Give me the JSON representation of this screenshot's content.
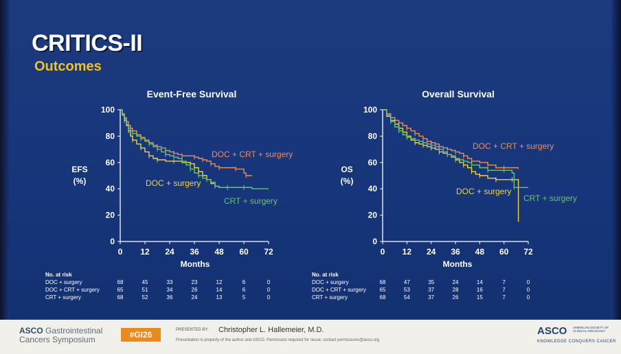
{
  "slide": {
    "title": "CRITICS-II",
    "subtitle": "Outcomes"
  },
  "colors": {
    "doc_crt": "#f28c55",
    "doc": "#f3d33a",
    "crt": "#6cc46a",
    "title": "#ffffff",
    "subtitle": "#f2c418",
    "background": "#16357a"
  },
  "chart_data": [
    {
      "type": "line",
      "title": "Event-Free Survival",
      "ylabel_line1": "EFS",
      "ylabel_line2": "(%)",
      "xlabel": "Months",
      "xticks": [
        0,
        12,
        24,
        36,
        48,
        60,
        72
      ],
      "yticks": [
        0,
        20,
        40,
        60,
        80,
        100
      ],
      "xlim": [
        0,
        72
      ],
      "ylim": [
        0,
        100
      ],
      "series": [
        {
          "name": "DOC + CRT + surgery",
          "color": "#f28c55",
          "x": [
            0,
            1,
            2,
            3,
            4,
            5,
            6,
            8,
            10,
            12,
            14,
            16,
            18,
            20,
            22,
            24,
            26,
            28,
            30,
            33,
            36,
            38,
            40,
            42,
            44,
            46,
            48,
            52,
            56,
            60,
            61,
            64
          ],
          "y": [
            100,
            97,
            94,
            91,
            88,
            86,
            84,
            81,
            79,
            77,
            75,
            73,
            72,
            71,
            69,
            68,
            67,
            66,
            65,
            65,
            64,
            63,
            62,
            61,
            59,
            57,
            56,
            56,
            55,
            52,
            50,
            50
          ]
        },
        {
          "name": "DOC + surgery",
          "color": "#f3d33a",
          "x": [
            0,
            1,
            2,
            3,
            4,
            5,
            6,
            8,
            10,
            12,
            14,
            16,
            18,
            22,
            26,
            30,
            34,
            36,
            38,
            40,
            42,
            44,
            46,
            48,
            52,
            56,
            60,
            64
          ],
          "y": [
            100,
            96,
            92,
            88,
            84,
            80,
            77,
            74,
            71,
            68,
            65,
            63,
            62,
            61,
            61,
            60,
            59,
            56,
            53,
            50,
            47,
            44,
            42,
            41,
            41,
            41,
            41,
            41
          ]
        },
        {
          "name": "CRT + surgery",
          "color": "#6cc46a",
          "x": [
            0,
            1,
            2,
            3,
            4,
            5,
            6,
            8,
            10,
            12,
            14,
            16,
            18,
            20,
            22,
            24,
            26,
            28,
            30,
            32,
            34,
            36,
            38,
            40,
            42,
            44,
            46,
            48,
            52,
            56,
            60,
            64,
            72
          ],
          "y": [
            100,
            97,
            93,
            89,
            86,
            84,
            82,
            80,
            78,
            76,
            74,
            72,
            70,
            68,
            66,
            65,
            64,
            63,
            61,
            58,
            55,
            52,
            50,
            48,
            47,
            45,
            42,
            41,
            41,
            41,
            41,
            40,
            40
          ]
        }
      ],
      "series_labels": [
        "DOC + CRT + surgery",
        "DOC + surgery",
        "CRT + surgery"
      ],
      "at_risk": {
        "header": "No. at risk",
        "months": [
          0,
          12,
          24,
          36,
          48,
          60,
          72
        ],
        "rows": [
          {
            "name": "DOC + surgery",
            "values": [
              "68",
              "45",
              "33",
              "23",
              "12",
              "6",
              "0"
            ]
          },
          {
            "name": "DOC + CRT + surgery",
            "values": [
              "65",
              "51",
              "34",
              "26",
              "14",
              "6",
              "0"
            ]
          },
          {
            "name": "CRT + surgery",
            "values": [
              "68",
              "52",
              "36",
              "24",
              "13",
              "5",
              "0"
            ]
          }
        ]
      }
    },
    {
      "type": "line",
      "title": "Overall Survival",
      "ylabel_line1": "OS",
      "ylabel_line2": "(%)",
      "xlabel": "Months",
      "xticks": [
        0,
        12,
        24,
        36,
        48,
        60,
        72
      ],
      "yticks": [
        0,
        20,
        40,
        60,
        80,
        100
      ],
      "xlim": [
        0,
        72
      ],
      "ylim": [
        0,
        100
      ],
      "series": [
        {
          "name": "DOC + CRT + surgery",
          "color": "#f28c55",
          "x": [
            0,
            2,
            4,
            6,
            8,
            10,
            12,
            14,
            16,
            18,
            20,
            22,
            24,
            26,
            28,
            30,
            32,
            34,
            36,
            38,
            40,
            42,
            44,
            48,
            52,
            56,
            60,
            64,
            67
          ],
          "y": [
            100,
            97,
            94,
            92,
            90,
            88,
            86,
            84,
            82,
            80,
            78,
            76,
            75,
            74,
            72,
            71,
            70,
            69,
            68,
            67,
            65,
            63,
            61,
            60,
            58,
            56,
            56,
            56,
            55
          ]
        },
        {
          "name": "DOC + surgery",
          "color": "#f3d33a",
          "x": [
            0,
            2,
            4,
            6,
            8,
            10,
            12,
            14,
            16,
            18,
            20,
            22,
            24,
            26,
            28,
            30,
            32,
            34,
            36,
            38,
            40,
            42,
            44,
            46,
            48,
            52,
            56,
            60,
            64,
            67,
            67.1
          ],
          "y": [
            100,
            95,
            92,
            89,
            86,
            83,
            80,
            77,
            75,
            74,
            73,
            72,
            71,
            70,
            68,
            67,
            66,
            64,
            62,
            60,
            58,
            56,
            53,
            51,
            50,
            48,
            47,
            47,
            47,
            47,
            15
          ]
        },
        {
          "name": "CRT + surgery",
          "color": "#6cc46a",
          "x": [
            0,
            2,
            4,
            6,
            8,
            10,
            12,
            14,
            16,
            18,
            20,
            22,
            24,
            26,
            28,
            30,
            32,
            34,
            36,
            38,
            40,
            42,
            44,
            48,
            52,
            56,
            60,
            64,
            65,
            72
          ],
          "y": [
            100,
            96,
            91,
            87,
            84,
            81,
            79,
            78,
            77,
            76,
            75,
            74,
            73,
            72,
            70,
            68,
            66,
            65,
            63,
            62,
            61,
            60,
            58,
            56,
            54,
            54,
            54,
            52,
            41,
            41
          ]
        }
      ],
      "series_labels": [
        "DOC + CRT + surgery",
        "DOC + surgery",
        "CRT + surgery"
      ],
      "at_risk": {
        "header": "No. at risk",
        "months": [
          0,
          12,
          24,
          36,
          48,
          60,
          72
        ],
        "rows": [
          {
            "name": "DOC + surgery",
            "values": [
              "68",
              "47",
              "35",
              "24",
              "14",
              "7",
              "0"
            ]
          },
          {
            "name": "DOC + CRT + surgery",
            "values": [
              "65",
              "53",
              "37",
              "28",
              "16",
              "7",
              "0"
            ]
          },
          {
            "name": "CRT + surgery",
            "values": [
              "68",
              "54",
              "37",
              "26",
              "15",
              "7",
              "0"
            ]
          }
        ]
      }
    }
  ],
  "footer": {
    "logo_line1_bold": "ASCO",
    "logo_line1_rest": " Gastrointestinal",
    "logo_line2": "Cancers Symposium",
    "hashtag": "#GI26",
    "presented_by": "PRESENTED BY:",
    "presenter": "Christopher L. Hallemeier, M.D.",
    "note": "Presentation is property of the author and ASCO. Permission required for reuse; contact permissions@asco.org",
    "asco": "ASCO",
    "asco_sub": "AMERICAN SOCIETY OF CLINICAL ONCOLOGY",
    "tagline": "KNOWLEDGE CONQUERS CANCER"
  }
}
